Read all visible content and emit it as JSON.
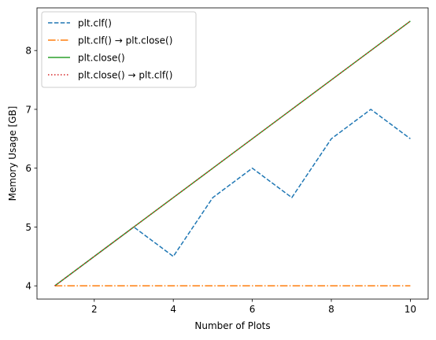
{
  "chart_data": {
    "type": "line",
    "xlabel": "Number of Plots",
    "ylabel": "Memory Usage [GB]",
    "xlim": [
      0.55,
      10.45
    ],
    "ylim": [
      3.775,
      8.725
    ],
    "x_ticks": [
      2,
      4,
      6,
      8,
      10
    ],
    "y_ticks": [
      4,
      5,
      6,
      7,
      8
    ],
    "grid": false,
    "legend_position": "top-left",
    "x": [
      1,
      2,
      3,
      4,
      5,
      6,
      7,
      8,
      9,
      10
    ],
    "series": [
      {
        "name": "plt.clf()",
        "color": "#1f77b4",
        "style": "dashed",
        "values": [
          4.0,
          4.5,
          5.0,
          4.5,
          5.5,
          6.0,
          5.5,
          6.5,
          7.0,
          6.5
        ]
      },
      {
        "name": "plt.clf() → plt.close()",
        "color": "#ff7f0e",
        "style": "dashdot",
        "values": [
          4.0,
          4.0,
          4.0,
          4.0,
          4.0,
          4.0,
          4.0,
          4.0,
          4.0,
          4.0
        ]
      },
      {
        "name": "plt.close()",
        "color": "#2ca02c",
        "style": "solid",
        "values": [
          4.0,
          4.5,
          5.0,
          5.5,
          6.0,
          6.5,
          7.0,
          7.5,
          8.0,
          8.5
        ]
      },
      {
        "name": "plt.close() → plt.clf()",
        "color": "#d62728",
        "style": "dotted",
        "values": [
          4.0,
          4.5,
          5.0,
          5.5,
          6.0,
          6.5,
          7.0,
          7.5,
          8.0,
          8.5
        ]
      }
    ]
  }
}
